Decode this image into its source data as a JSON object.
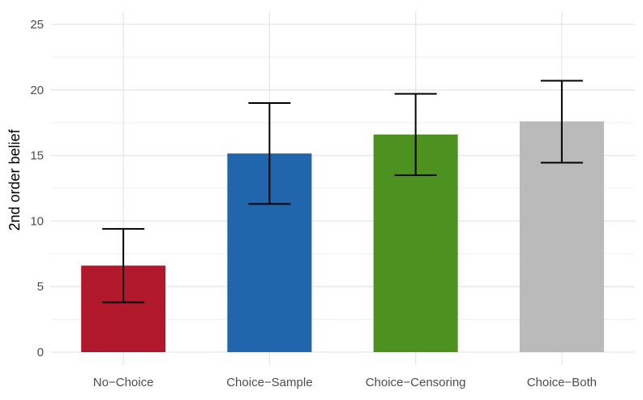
{
  "chart_data": {
    "type": "bar",
    "title": "",
    "xlabel": "",
    "ylabel": "2nd order belief",
    "categories": [
      "No−Choice",
      "Choice−Sample",
      "Choice−Censoring",
      "Choice−Both"
    ],
    "values": [
      6.6,
      15.15,
      16.6,
      17.6
    ],
    "error_bars": {
      "lower": [
        3.8,
        11.3,
        13.5,
        14.45
      ],
      "upper": [
        9.4,
        19.0,
        19.7,
        20.7
      ]
    },
    "colors": [
      "#b2182b",
      "#2166ac",
      "#4d9221",
      "#bababa"
    ],
    "ylim": [
      0,
      26
    ],
    "yticks": [
      0,
      5,
      10,
      15,
      20,
      25
    ],
    "grid": true,
    "legend": "none"
  }
}
